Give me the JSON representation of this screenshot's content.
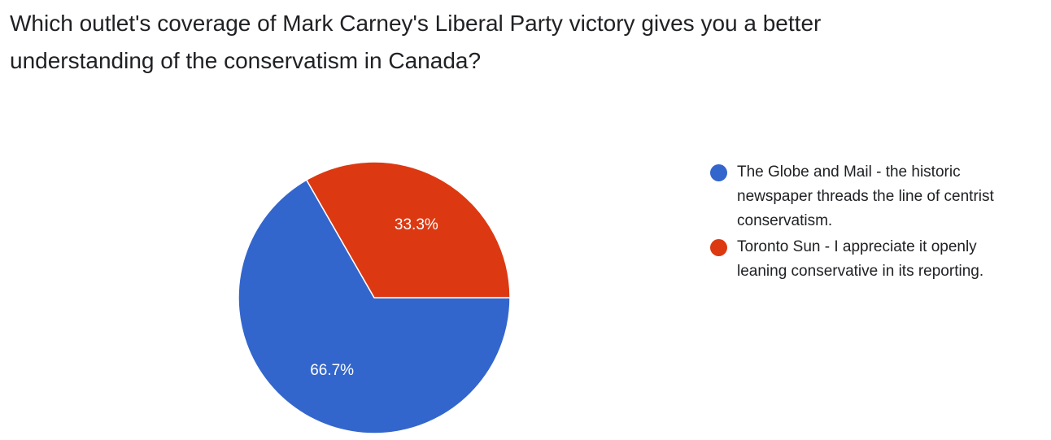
{
  "question": {
    "line1": "Which outlet's coverage of Mark Carney's Liberal Party victory gives you a better",
    "line2": "understanding of the conservatism in Canada?"
  },
  "chart_data": {
    "type": "pie",
    "slices": [
      {
        "name": "The Globe and Mail - the historic newspaper threads the line of centrist conservatism.",
        "label_lines": [
          "The Globe and Mail - the historic",
          "newspaper threads the line of centrist",
          "conservatism."
        ],
        "value": 66.7,
        "display": "66.7%",
        "color": "#3366cc"
      },
      {
        "name": "Toronto Sun - I appreciate it openly leaning conservative in its reporting.",
        "label_lines": [
          "Toronto Sun - I appreciate it openly",
          "leaning conservative in its reporting."
        ],
        "value": 33.3,
        "display": "33.3%",
        "color": "#dc3912"
      }
    ],
    "start_angle_deg": 0,
    "direction": "clockwise",
    "legend_position": "right"
  }
}
